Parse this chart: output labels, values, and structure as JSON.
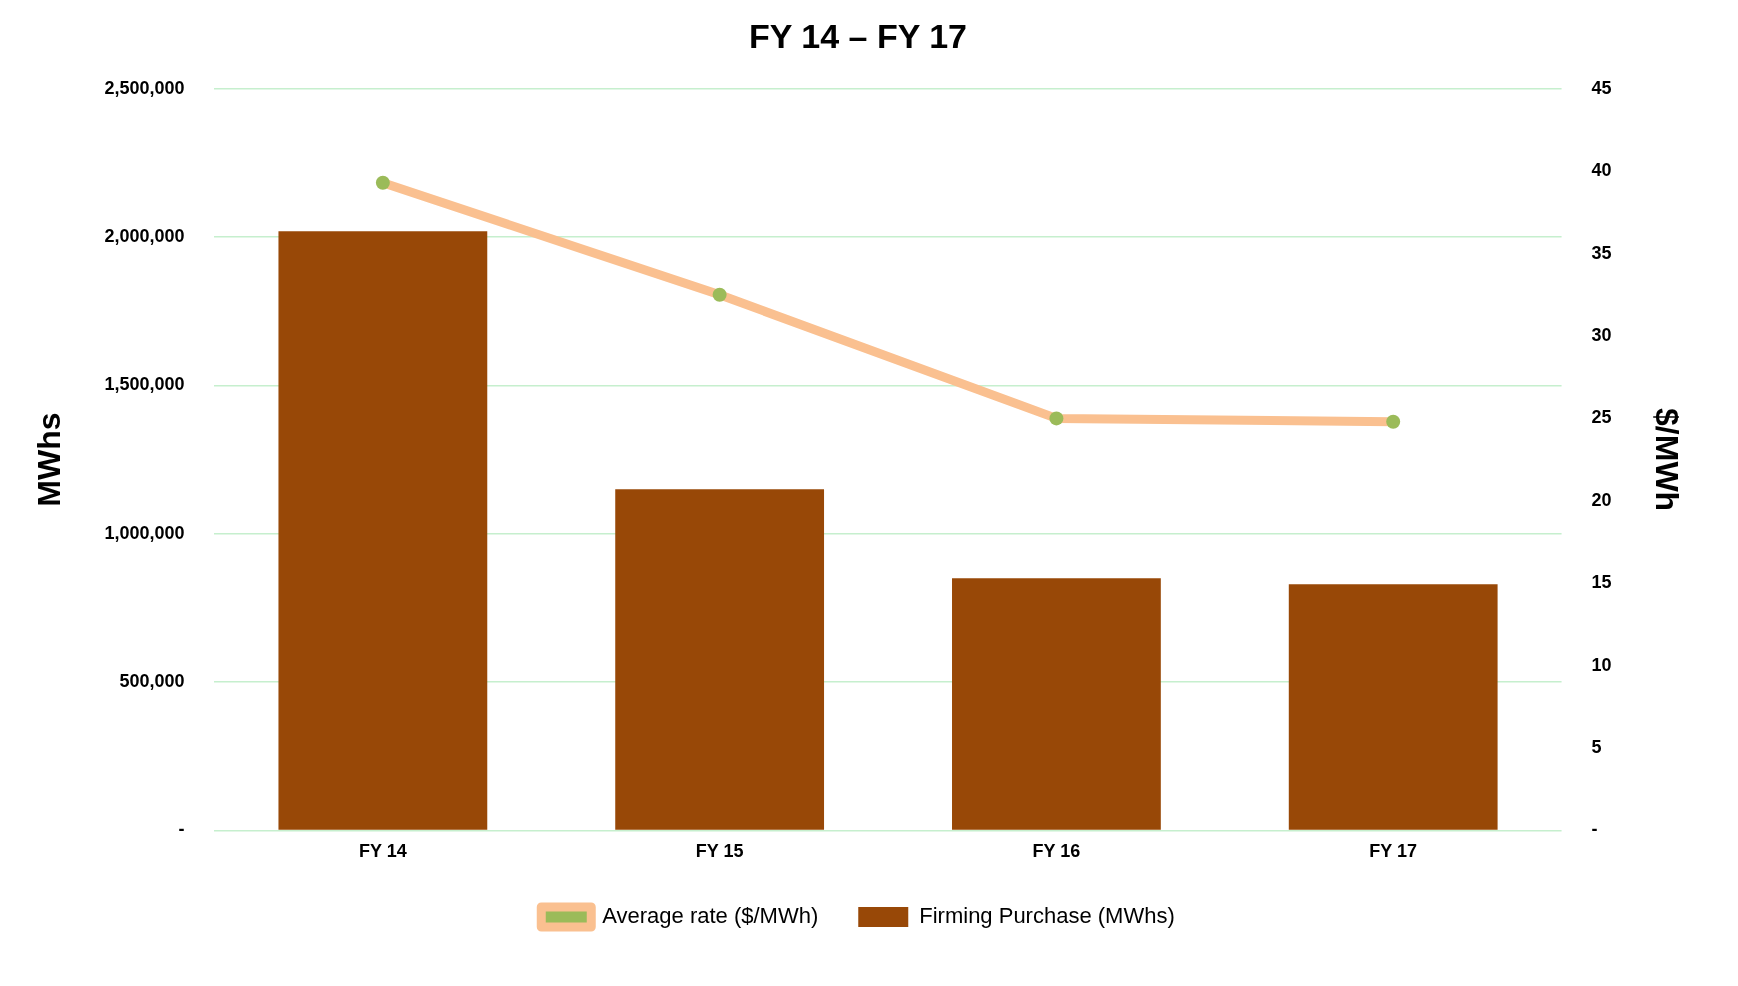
{
  "chart_data": {
    "type": "bar",
    "title": "FY 14 – FY 17",
    "ylabel": "MWhs",
    "y2label": "$/MWh",
    "categories": [
      "FY 14",
      "FY 15",
      "FY 16",
      "FY 17"
    ],
    "series": [
      {
        "name": "Firming Purchase (MWhs)",
        "color": "#984807",
        "values": [
          2020000,
          1150000,
          850000,
          830000
        ]
      },
      {
        "name": "Average rate ($/MWh)",
        "type": "line",
        "axis": "y2",
        "color": "#fac090",
        "marker": "circle",
        "values": [
          39.3,
          32.5,
          25.0,
          24.8
        ]
      }
    ],
    "ylim": [
      0,
      2500000
    ],
    "yticks": [
      {
        "value": 0,
        "label": "-"
      },
      {
        "value": 500000,
        "label": "500,000"
      },
      {
        "value": 1000000,
        "label": "1,000,000"
      },
      {
        "value": 1500000,
        "label": "1,500,000"
      },
      {
        "value": 2000000,
        "label": "2,000,000"
      },
      {
        "value": 2500000,
        "label": "2,500,000"
      }
    ],
    "y2lim": [
      0,
      45
    ],
    "y2ticks": [
      {
        "value": 0,
        "label": "-"
      },
      5,
      10,
      15,
      20,
      25,
      30,
      35,
      40,
      45
    ],
    "grid": "y",
    "legend": "bottom"
  }
}
